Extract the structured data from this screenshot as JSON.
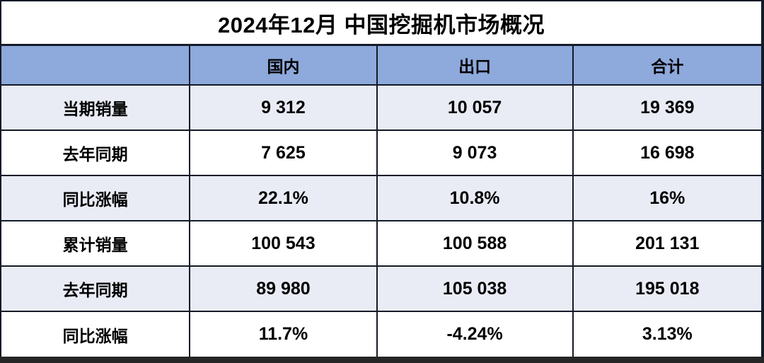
{
  "title": "2024年12月 中国挖掘机市场概况",
  "colors": {
    "header-bg": "#8EA9DB",
    "band-bg": "#E9EBF5",
    "row-bg": "#FFFFFF",
    "border": "#141A28",
    "text": "#000000",
    "shadow-bar": "#262626"
  },
  "table": {
    "columns": [
      "",
      "国内",
      "出口",
      "合计"
    ],
    "rows": [
      {
        "label": "当期销量",
        "values": [
          "9 312",
          "10 057",
          "19 369"
        ]
      },
      {
        "label": "去年同期",
        "values": [
          "7 625",
          "9 073",
          "16 698"
        ]
      },
      {
        "label": "同比涨幅",
        "values": [
          "22.1%",
          "10.8%",
          "16%"
        ]
      },
      {
        "label": "累计销量",
        "values": [
          "100 543",
          "100 588",
          "201 131"
        ]
      },
      {
        "label": "去年同期",
        "values": [
          "89 980",
          "105 038",
          "195 018"
        ]
      },
      {
        "label": "同比涨幅",
        "values": [
          "11.7%",
          "-4.24%",
          "3.13%"
        ]
      }
    ]
  },
  "chart_data": {
    "type": "table",
    "title": "2024年12月 中国挖掘机市场概况",
    "columns": [
      "国内",
      "出口",
      "合计"
    ],
    "row_labels": [
      "当期销量",
      "去年同期",
      "同比涨幅",
      "累计销量",
      "去年同期",
      "同比涨幅"
    ],
    "rows": [
      {
        "label": "当期销量",
        "values": [
          9312,
          10057,
          19369
        ]
      },
      {
        "label": "去年同期",
        "values": [
          7625,
          9073,
          16698
        ]
      },
      {
        "label": "同比涨幅",
        "values": [
          "22.1%",
          "10.8%",
          "16%"
        ]
      },
      {
        "label": "累计销量",
        "values": [
          100543,
          100588,
          201131
        ]
      },
      {
        "label": "去年同期",
        "values": [
          89980,
          105038,
          195018
        ]
      },
      {
        "label": "同比涨幅",
        "values": [
          "11.7%",
          "-4.24%",
          "3.13%"
        ]
      }
    ],
    "notes": "Monthly (当期) and cumulative (累计) excavator sales, December 2024, domestic / export / total, with year-over-year change rows"
  }
}
